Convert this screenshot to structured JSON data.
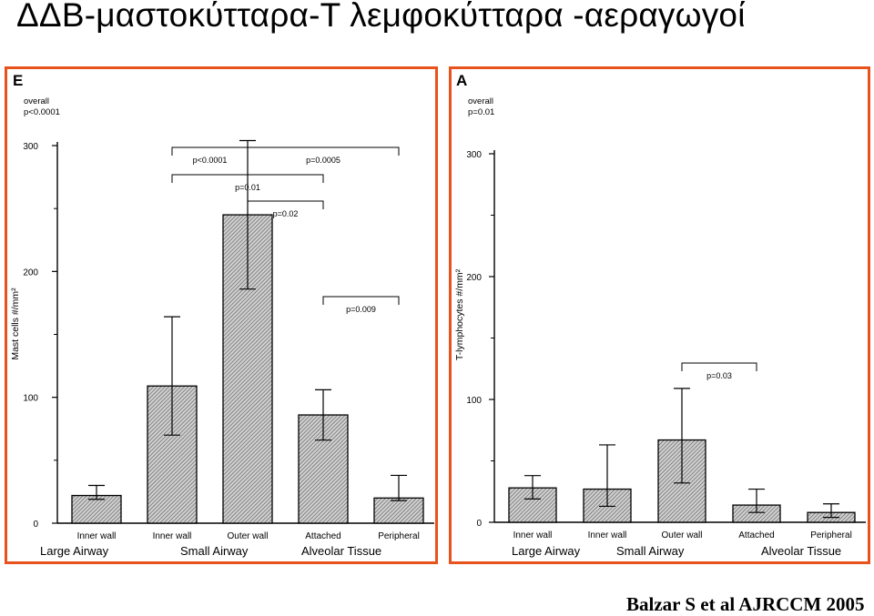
{
  "slide": {
    "title": "ΔΔΒ-μαστοκύτταρα-Τ λεμφοκύτταρα -αεραγωγοί",
    "citation": "Balzar S et al AJRCCM 2005"
  },
  "colors": {
    "frame": "#e8521c",
    "bar_fill": "#b8b8b8",
    "ink": "#000000"
  },
  "chart_data": [
    {
      "type": "bar",
      "panel_letter": "E",
      "overall_label": "overall",
      "overall_p": "p<0.0001",
      "ylabel": "Mast cells  #/mm²",
      "ylim": [
        0,
        300
      ],
      "yticks": [
        0,
        100,
        200,
        300
      ],
      "categories": [
        "Inner wall",
        "Inner wall",
        "Outer wall",
        "Attached",
        "Peripheral"
      ],
      "groups": [
        "Large Airway",
        "Small Airway",
        "Alveolar Tissue"
      ],
      "values": [
        22,
        109,
        245,
        86,
        20
      ],
      "err_upper": [
        30,
        164,
        304,
        106,
        38
      ],
      "err_lower": [
        19,
        70,
        186,
        66,
        18
      ],
      "comparisons": [
        {
          "label": "p<0.0001",
          "from": 1,
          "to": 2
        },
        {
          "label": "p=0.0005",
          "from": 2,
          "to": 4
        },
        {
          "label": "p=0.01",
          "from": 1,
          "to": 3
        },
        {
          "label": "p=0.02",
          "from": 2,
          "to": 3
        },
        {
          "label": "p=0.009",
          "from": 3,
          "to": 4
        }
      ]
    },
    {
      "type": "bar",
      "panel_letter": "A",
      "overall_label": "overall",
      "overall_p": "p=0.01",
      "ylabel": "T-lymphocytes #/mm²",
      "ylim": [
        0,
        300
      ],
      "yticks": [
        0,
        100,
        200,
        300
      ],
      "categories": [
        "Inner wall",
        "Inner wall",
        "Outer wall",
        "Attached",
        "Peripheral"
      ],
      "groups": [
        "Large Airway",
        "Small Airway",
        "Alveolar Tissue"
      ],
      "values": [
        28,
        27,
        67,
        14,
        8
      ],
      "err_upper": [
        38,
        63,
        109,
        27,
        15
      ],
      "err_lower": [
        19,
        13,
        32,
        8,
        4
      ],
      "comparisons": [
        {
          "label": "p=0.03",
          "from": 2,
          "to": 3
        }
      ]
    }
  ]
}
